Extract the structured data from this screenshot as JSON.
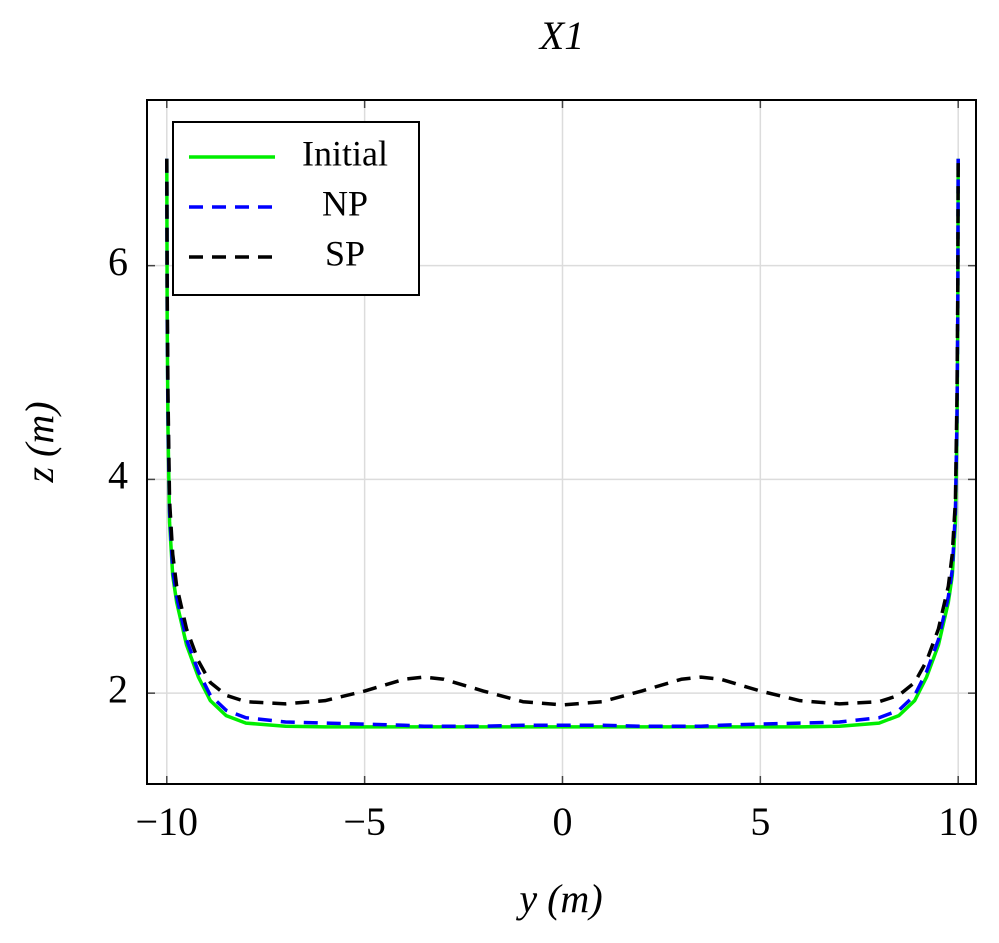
{
  "chart_data": {
    "type": "line",
    "title": "X1",
    "xlabel": "y (m)",
    "ylabel": "z (m)",
    "x": [
      -10,
      -9.99,
      -9.97,
      -9.93,
      -9.85,
      -9.75,
      -9.5,
      -9.2,
      -8.9,
      -8.5,
      -8,
      -7,
      -6,
      -5,
      -4,
      -3.5,
      -3,
      -2,
      -1,
      0,
      1,
      2,
      3,
      3.5,
      4,
      5,
      6,
      7,
      8,
      8.5,
      8.9,
      9.2,
      9.5,
      9.75,
      9.85,
      9.93,
      9.97,
      9.99,
      10
    ],
    "series": [
      {
        "name": "Initial",
        "color": "#00ee00",
        "dashed": false,
        "values": [
          7,
          5.5,
          4.5,
          3.6,
          3.1,
          2.85,
          2.45,
          2.15,
          1.93,
          1.79,
          1.72,
          1.69,
          1.685,
          1.685,
          1.685,
          1.685,
          1.685,
          1.685,
          1.685,
          1.685,
          1.685,
          1.685,
          1.685,
          1.685,
          1.685,
          1.685,
          1.685,
          1.69,
          1.72,
          1.79,
          1.93,
          2.15,
          2.45,
          2.85,
          3.1,
          3.6,
          4.5,
          5.5,
          7
        ]
      },
      {
        "name": "NP",
        "color": "#0000ff",
        "dashed": true,
        "values": [
          7,
          5.6,
          4.6,
          3.7,
          3.15,
          2.9,
          2.5,
          2.2,
          1.98,
          1.84,
          1.77,
          1.73,
          1.72,
          1.71,
          1.7,
          1.69,
          1.69,
          1.69,
          1.7,
          1.7,
          1.7,
          1.69,
          1.69,
          1.69,
          1.7,
          1.71,
          1.72,
          1.73,
          1.77,
          1.84,
          1.98,
          2.2,
          2.5,
          2.9,
          3.15,
          3.7,
          4.6,
          5.6,
          7
        ]
      },
      {
        "name": "SP",
        "color": "#000000",
        "dashed": true,
        "values": [
          7,
          5.8,
          4.8,
          3.8,
          3.3,
          3.0,
          2.6,
          2.3,
          2.1,
          1.98,
          1.92,
          1.9,
          1.93,
          2.02,
          2.13,
          2.15,
          2.13,
          2.02,
          1.92,
          1.89,
          1.92,
          2.02,
          2.13,
          2.15,
          2.13,
          2.02,
          1.93,
          1.9,
          1.92,
          1.98,
          2.1,
          2.3,
          2.6,
          3.0,
          3.3,
          3.8,
          4.8,
          5.8,
          7
        ]
      }
    ],
    "xlim": [
      -10.5,
      10.45
    ],
    "ylim": [
      1.15,
      7.55
    ],
    "xticks": [
      {
        "value": -10,
        "label": "−10"
      },
      {
        "value": -5,
        "label": "−5"
      },
      0,
      5,
      10
    ],
    "yticks": [
      2,
      4,
      6
    ],
    "grid": true,
    "legend": "upper left"
  }
}
